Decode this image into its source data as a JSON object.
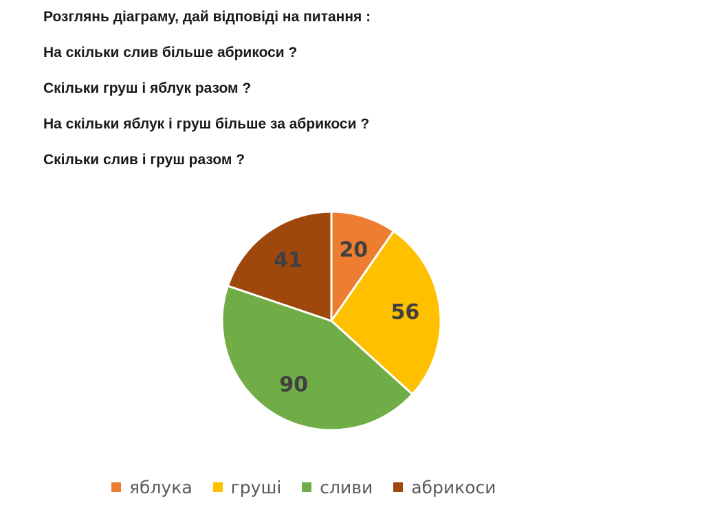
{
  "questions": [
    "Розглянь діаграму, дай відповіді на питання :",
    "На скільки слив більше абрикоси ?",
    "Скільки груш і яблук разом ?",
    "На скільки яблук і груш більше за абрикоси ?",
    "Скільки слив і груш разом ?"
  ],
  "chart_data": {
    "type": "pie",
    "categories": [
      "яблука",
      "груші",
      "сливи",
      "абрикоси"
    ],
    "values": [
      20,
      56,
      90,
      41
    ],
    "colors": [
      "#ED7D31",
      "#FFC000",
      "#70AD47",
      "#9E480E"
    ],
    "data_labels": [
      "20",
      "56",
      "90",
      "41"
    ],
    "legend_position": "bottom"
  }
}
